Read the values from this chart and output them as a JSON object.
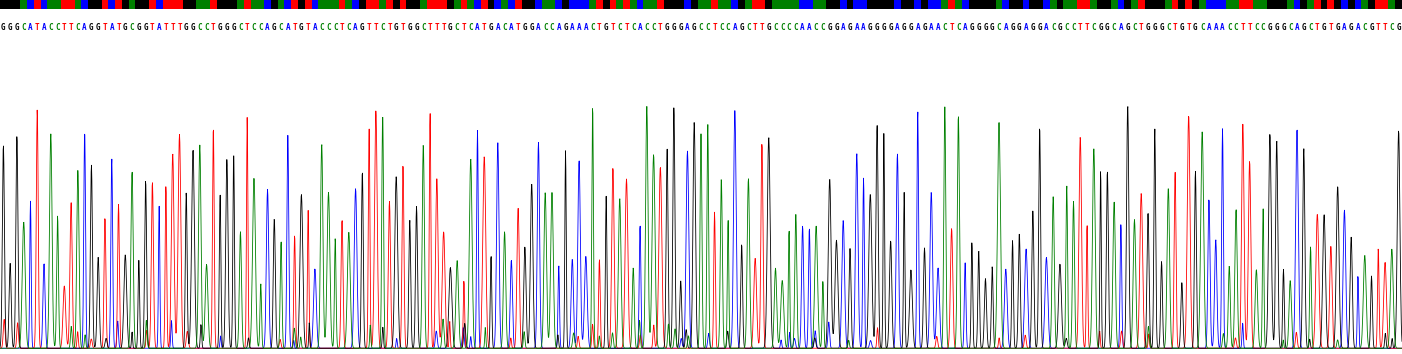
{
  "sequence": "GGGCATACCTTCAGGTATGCGGTATTTGGCCTGGGCTCCAGCATGTACCCTCAGTTCTGTGGCTTTGCTCATGACATGGACCAGAAACTGTCTCACCTGGGAGCCTCCAGCTTGCCCCAACCGGAGAAGGGGAGGAGAACTCAGGGGCAGGAGGACGCCTTCGGCAGCTGGGCTGTGCAAACCTTCCGGGCAGCTGTGAGACGTTCG",
  "bg_color": "#ffffff",
  "text_color_map": {
    "G": "#000000",
    "C": "#008000",
    "A": "#0000ff",
    "T": "#ff0000"
  },
  "peak_color_map": {
    "G": "#000000",
    "C": "#008000",
    "A": "#0000ff",
    "T": "#ff0000"
  },
  "fig_width": 14.02,
  "fig_height": 3.54,
  "dpi": 100,
  "sequence_fontsize": 5.5
}
